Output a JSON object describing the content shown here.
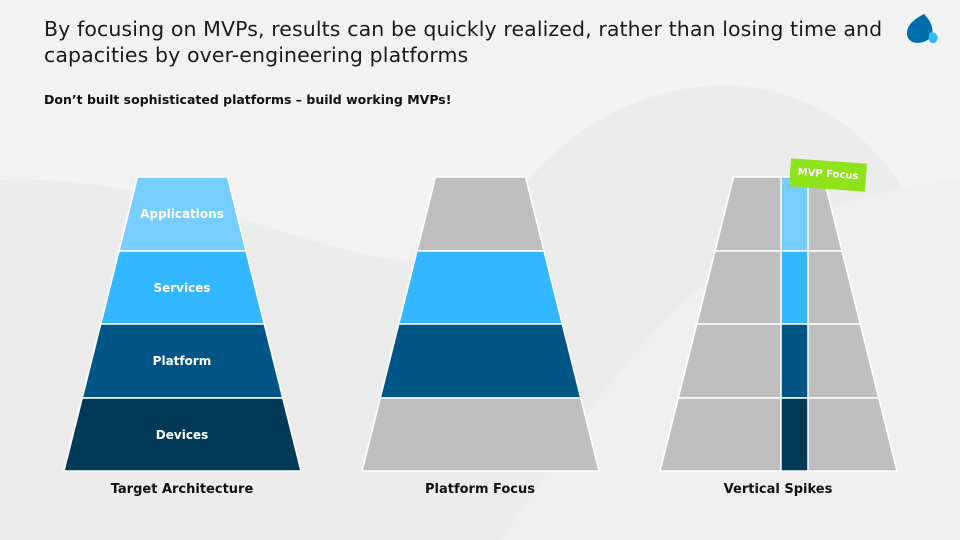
{
  "header": {
    "title": "By focusing on MVPs, results can be quickly realized, rather than losing time and capacities by over-engineering platforms",
    "subtitle": "Don’t built sophisticated platforms – build working MVPs!",
    "logo_icon": "droplet-logo-icon"
  },
  "colors": {
    "applications": "#78CDFF",
    "services": "#33B8FF",
    "platform": "#005587",
    "devices": "#003A57",
    "inactive": "#BFBFBF",
    "badge": "#8FE31B"
  },
  "layers": [
    "Applications",
    "Services",
    "Platform",
    "Devices"
  ],
  "diagrams": [
    {
      "caption": "Target Architecture",
      "highlight": [
        "applications",
        "services",
        "platform",
        "devices"
      ]
    },
    {
      "caption": "Platform Focus",
      "highlight": [
        "inactive",
        "services",
        "platform",
        "inactive"
      ]
    },
    {
      "caption": "Vertical Spikes",
      "highlight": [
        "inactive",
        "inactive",
        "inactive",
        "inactive"
      ],
      "column": [
        "applications",
        "services",
        "platform",
        "devices"
      ]
    }
  ],
  "badge": {
    "label": "MVP Focus"
  }
}
